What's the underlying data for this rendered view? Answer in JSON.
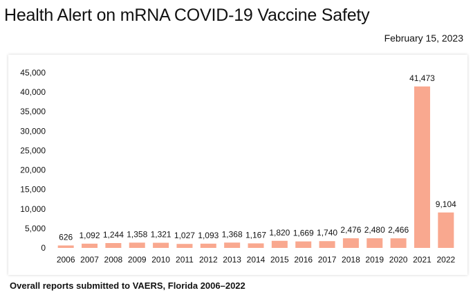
{
  "header": {
    "title": "Health Alert on mRNA COVID-19 Vaccine Safety",
    "date": "February 15, 2023"
  },
  "caption": "Overall reports submitted to VAERS, Florida 2006–2022",
  "colors": {
    "bar": "#f9a88f"
  },
  "chart_data": {
    "type": "bar",
    "title": "",
    "xlabel": "",
    "ylabel": "",
    "categories": [
      "2006",
      "2007",
      "2008",
      "2009",
      "2010",
      "2011",
      "2012",
      "2013",
      "2014",
      "2015",
      "2016",
      "2017",
      "2018",
      "2019",
      "2020",
      "2021",
      "2022"
    ],
    "values": [
      626,
      1092,
      1244,
      1358,
      1321,
      1027,
      1093,
      1368,
      1167,
      1820,
      1669,
      1740,
      2476,
      2480,
      2466,
      41473,
      9104
    ],
    "value_labels": [
      "626",
      "1,092",
      "1,244",
      "1,358",
      "1,321",
      "1,027",
      "1,093",
      "1,368",
      "1,167",
      "1,820",
      "1,669",
      "1,740",
      "2,476",
      "2,480",
      "2,466",
      "41,473",
      "9,104"
    ],
    "ylim": [
      0,
      45000
    ],
    "yticks": [
      0,
      5000,
      10000,
      15000,
      20000,
      25000,
      30000,
      35000,
      40000,
      45000
    ],
    "ytick_labels": [
      "0",
      "5,000",
      "10,000",
      "15,000",
      "20,000",
      "25,000",
      "30,000",
      "35,000",
      "40,000",
      "45,000"
    ],
    "grid": false,
    "legend": "none"
  }
}
